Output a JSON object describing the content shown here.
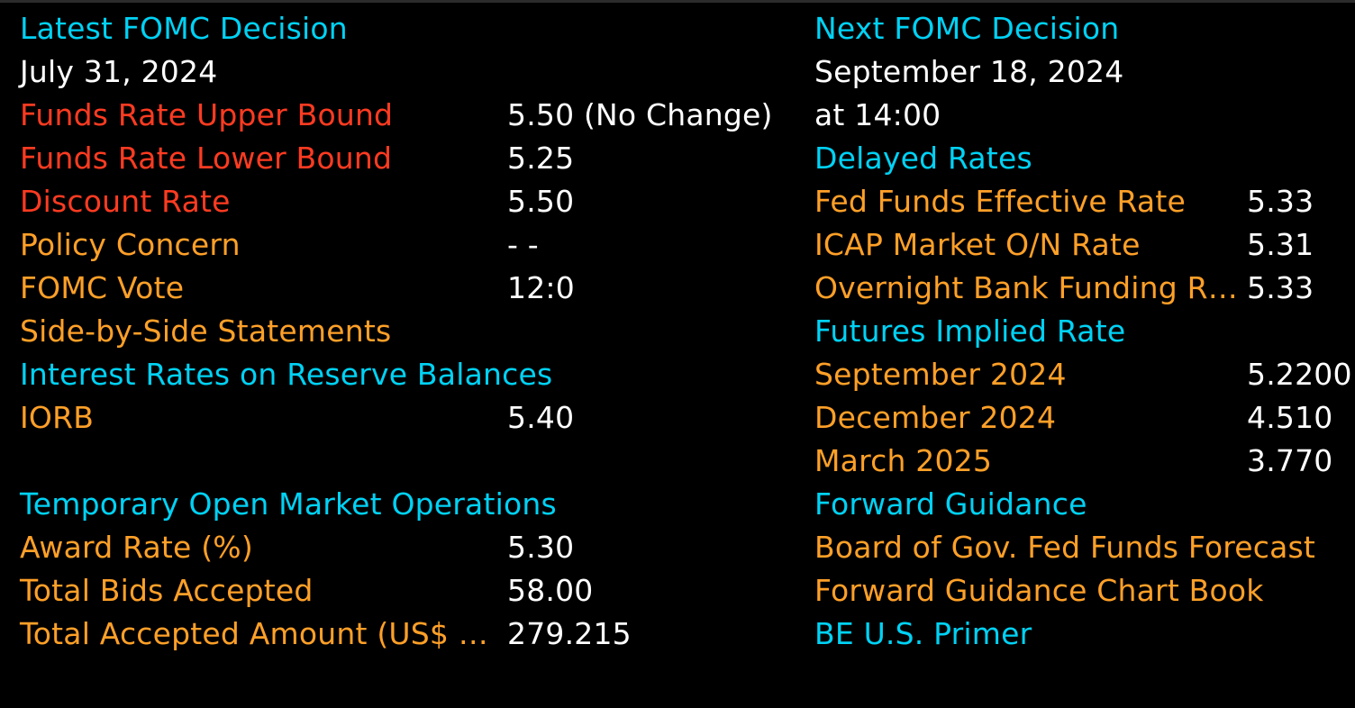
{
  "colors": {
    "background": "#000000",
    "header": "#00d2f5",
    "value": "#ffffff",
    "key_rate_label": "#ff3b21",
    "label": "#ffa028"
  },
  "left": {
    "latest_header": "Latest FOMC Decision",
    "latest_date": "July 31, 2024",
    "rates": [
      {
        "label": "Funds Rate Upper Bound",
        "value": "5.50 (No Change)"
      },
      {
        "label": "Funds Rate Lower Bound",
        "value": "5.25"
      },
      {
        "label": "Discount Rate",
        "value": "5.50"
      }
    ],
    "policy": [
      {
        "label": "Policy Concern",
        "value": "- -"
      },
      {
        "label": "FOMC Vote",
        "value": "12:0"
      }
    ],
    "side_by_side": "Side-by-Side Statements",
    "iorb_header": "Interest Rates on Reserve Balances",
    "iorb": {
      "label": "IORB",
      "value": "5.40"
    },
    "tomo_header": "Temporary Open Market Operations",
    "tomo": [
      {
        "label": "Award Rate (%)",
        "value": "5.30"
      },
      {
        "label": "Total Bids Accepted",
        "value": "58.00"
      },
      {
        "label": "Total Accepted Amount (US$ …",
        "value": "279.215"
      }
    ]
  },
  "right": {
    "next_header": "Next FOMC Decision",
    "next_date": "September 18, 2024",
    "next_time": "at 14:00",
    "delayed_header": "Delayed Rates",
    "delayed": [
      {
        "label": "Fed Funds Effective Rate",
        "value": "5.33"
      },
      {
        "label": "ICAP Market O/N Rate",
        "value": "5.31"
      },
      {
        "label": "Overnight Bank Funding R…",
        "value": "5.33"
      }
    ],
    "futures_header": "Futures Implied Rate",
    "futures": [
      {
        "label": "September 2024",
        "value": "5.2200"
      },
      {
        "label": "December 2024",
        "value": "4.510"
      },
      {
        "label": "March 2025",
        "value": "3.770"
      }
    ],
    "guidance_header": "Forward Guidance",
    "guidance_links": [
      "Board of Gov. Fed Funds Forecast",
      "Forward Guidance Chart Book"
    ],
    "primer": "BE U.S. Primer"
  }
}
